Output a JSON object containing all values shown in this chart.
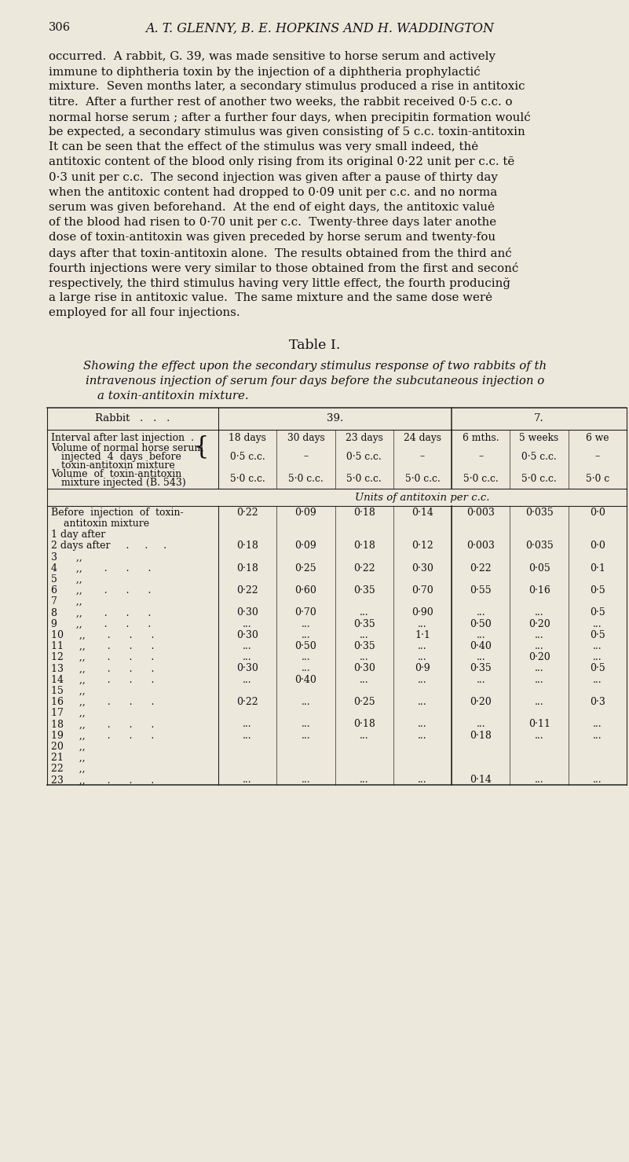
{
  "bg_color": "#ede8dc",
  "page_number": "306",
  "header": "A. T. GLENNY, B. E. HOPKINS AND H. WADDINGTON",
  "body_text": [
    "occurred.  A rabbit, G. 39, was made sensitive to horse serum and actively",
    "immune to diphtheria toxin by the injection of a diphtheria prophylactić",
    "mixture.  Seven months later, a secondary stimulus produced a rise in antitoxic",
    "titre.  After a further rest of another two weeks, the rabbit received 0·5 c.c. o",
    "normal horse serum ; after a further four days, when precipitin formation woulć",
    "be expected, a secondary stimulus was given consisting of 5 c.c. toxin-antitoxin",
    "It can be seen that the effect of the stimulus was very small indeed, thė",
    "antitoxic content of the blood only rising from its original 0·22 unit per c.c. tē",
    "0·3 unit per c.c.  The second injection was given after a pause of thirty day",
    "when the antitoxic content had dropped to 0·09 unit per c.c. and no norma",
    "serum was given beforehand.  At the end of eight days, the antitoxic valuė",
    "of the blood had risen to 0·70 unit per c.c.  Twenty-three days later anothe",
    "dose of toxin-antitoxin was given preceded by horse serum and twenty-fou",
    "days after that toxin-antitoxin alone.  The results obtained from the third anć",
    "fourth injections were very similar to those obtained from the first and seconć",
    "respectively, the third stimulus having very little effect, the fourth producinğ",
    "a large rise in antitoxic value.  The same mixture and the same dose werė",
    "employed for all four injections."
  ],
  "table_title": "Table I.",
  "table_caption_line1": "Showing the effect upon the secondary stimulus response of two rabbits of th",
  "table_caption_line2": "intravenous injection of serum four days before the subcutaneous injection o",
  "table_caption_line3": "a toxin-antitoxin mixture.",
  "col_headers": [
    "18 days",
    "30 days",
    "23 days",
    "24 days",
    "6 mths.",
    "5 weeks",
    "6 we"
  ],
  "serum_row": [
    "0·5 c.c.",
    "–",
    "0·5 c.c.",
    "–",
    "–",
    "0·5 c.c.",
    "–"
  ],
  "toxin_row": [
    "5·0 c.c.",
    "5·0 c.c.",
    "5·0 c.c.",
    "5·0 c.c.",
    "5·0 c.c.",
    "5·0 c.c.",
    "5·0 c"
  ],
  "units_header": "Units of antitoxin per c.c.",
  "data_rows": {
    "Before": [
      "0·22",
      "0·09",
      "0·18",
      "0·14",
      "0·003",
      "0·035",
      "0·0"
    ],
    "2day": [
      "0·18",
      "0·09",
      "0·18",
      "0·12",
      "0·003",
      "0·035",
      "0·0"
    ],
    "4": [
      "0·18",
      "0·25",
      "0·22",
      "0·30",
      "0·22",
      "0·05",
      "0·1"
    ],
    "6": [
      "0·22",
      "0·60",
      "0·35",
      "0·70",
      "0·55",
      "0·16",
      "0·5"
    ],
    "8": [
      "0·30",
      "0·70",
      "...",
      "0·90",
      "...",
      "...",
      "0·5"
    ],
    "9": [
      "...",
      "...",
      "0·35",
      "...",
      "0·50",
      "0·20",
      "..."
    ],
    "10": [
      "0·30",
      "...",
      "...",
      "1·1",
      "...",
      "...",
      "0·5"
    ],
    "11": [
      "...",
      "0·50",
      "0·35",
      "...",
      "0·40",
      "...",
      "..."
    ],
    "12": [
      "...",
      "...",
      "...",
      "...",
      "...",
      "0·20",
      "..."
    ],
    "13": [
      "0·30",
      "...",
      "0·30",
      "0·9",
      "0·35",
      "...",
      "0·5"
    ],
    "14": [
      "...",
      "0·40",
      "...",
      "...",
      "...",
      "...",
      "..."
    ],
    "16": [
      "0·22",
      "...",
      "0·25",
      "...",
      "0·20",
      "...",
      "0·3"
    ],
    "18": [
      "...",
      "...",
      "0·18",
      "...",
      "...",
      "0·11",
      "..."
    ],
    "19": [
      "...",
      "...",
      "...",
      "...",
      "0·18",
      "...",
      "..."
    ],
    "23": [
      "...",
      "...",
      "...",
      "...",
      "0·14",
      "...",
      "..."
    ]
  }
}
